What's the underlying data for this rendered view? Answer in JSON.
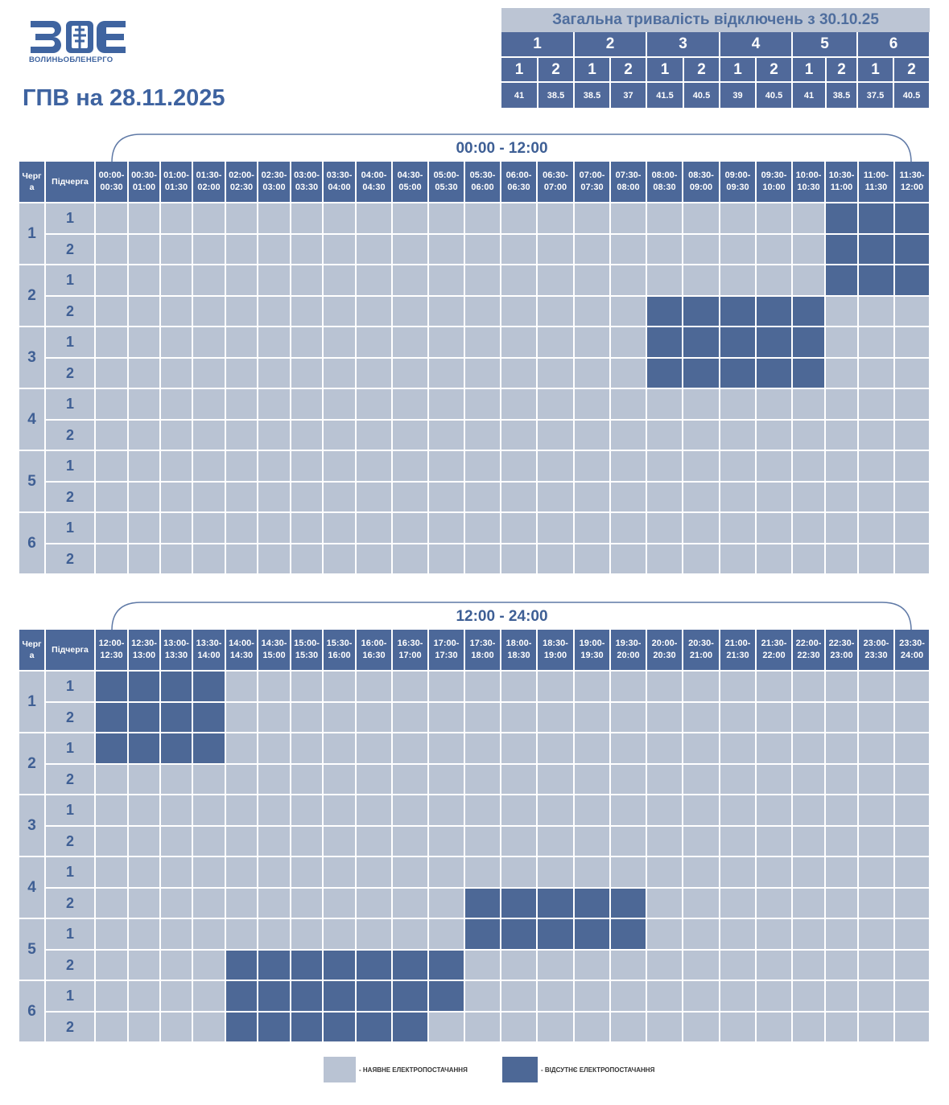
{
  "logo": {
    "text": "ВОЛИНЬОБЛЕНЕРГО",
    "mark_icon": "zoe-logo-icon",
    "color": "#3f64a0"
  },
  "title": "ГПВ на 28.11.2025",
  "summary": {
    "heading": "Загальна тривалість відключень з 30.10.25",
    "queues": [
      {
        "label": "1",
        "subs": [
          {
            "label": "1",
            "value": "41"
          },
          {
            "label": "2",
            "value": "38.5"
          }
        ]
      },
      {
        "label": "2",
        "subs": [
          {
            "label": "1",
            "value": "38.5"
          },
          {
            "label": "2",
            "value": "37"
          }
        ]
      },
      {
        "label": "3",
        "subs": [
          {
            "label": "1",
            "value": "41.5"
          },
          {
            "label": "2",
            "value": "40.5"
          }
        ]
      },
      {
        "label": "4",
        "subs": [
          {
            "label": "1",
            "value": "39"
          },
          {
            "label": "2",
            "value": "40.5"
          }
        ]
      },
      {
        "label": "5",
        "subs": [
          {
            "label": "1",
            "value": "41"
          },
          {
            "label": "2",
            "value": "38.5"
          }
        ]
      },
      {
        "label": "6",
        "subs": [
          {
            "label": "1",
            "value": "37.5"
          },
          {
            "label": "2",
            "value": "40.5"
          }
        ]
      }
    ]
  },
  "schedule": {
    "col_queue_label_top": "Черг",
    "col_queue_label_bottom": "а",
    "col_sub_label": "Підчерга",
    "queues": [
      "1",
      "2",
      "3",
      "4",
      "5",
      "6"
    ],
    "subqueues": [
      "1",
      "2"
    ],
    "colors": {
      "available": "#b9c3d3",
      "outage": "#4d6896",
      "header": "#4c6899"
    },
    "halves": [
      {
        "range_label": "00:00 - 12:00",
        "slots": [
          [
            "00:00-",
            "00:30"
          ],
          [
            "00:30-",
            "01:00"
          ],
          [
            "01:00-",
            "01:30"
          ],
          [
            "01:30-",
            "02:00"
          ],
          [
            "02:00-",
            "02:30"
          ],
          [
            "02:30-",
            "03:00"
          ],
          [
            "03:00-",
            "03:30"
          ],
          [
            "03:30-",
            "04:00"
          ],
          [
            "04:00-",
            "04:30"
          ],
          [
            "04:30-",
            "05:00"
          ],
          [
            "05:00-",
            "05:30"
          ],
          [
            "05:30-",
            "06:00"
          ],
          [
            "06:00-",
            "06:30"
          ],
          [
            "06:30-",
            "07:00"
          ],
          [
            "07:00-",
            "07:30"
          ],
          [
            "07:30-",
            "08:00"
          ],
          [
            "08:00-",
            "08:30"
          ],
          [
            "08:30-",
            "09:00"
          ],
          [
            "09:00-",
            "09:30"
          ],
          [
            "09:30-",
            "10:00"
          ],
          [
            "10:00-",
            "10:30"
          ],
          [
            "10:30-",
            "11:00"
          ],
          [
            "11:00-",
            "11:30"
          ],
          [
            "11:30-",
            "12:00"
          ]
        ],
        "rows": [
          [
            0,
            0,
            0,
            0,
            0,
            0,
            0,
            0,
            0,
            0,
            0,
            0,
            0,
            0,
            0,
            0,
            0,
            0,
            0,
            0,
            0,
            1,
            1,
            1
          ],
          [
            0,
            0,
            0,
            0,
            0,
            0,
            0,
            0,
            0,
            0,
            0,
            0,
            0,
            0,
            0,
            0,
            0,
            0,
            0,
            0,
            0,
            1,
            1,
            1
          ],
          [
            0,
            0,
            0,
            0,
            0,
            0,
            0,
            0,
            0,
            0,
            0,
            0,
            0,
            0,
            0,
            0,
            0,
            0,
            0,
            0,
            0,
            1,
            1,
            1
          ],
          [
            0,
            0,
            0,
            0,
            0,
            0,
            0,
            0,
            0,
            0,
            0,
            0,
            0,
            0,
            0,
            0,
            1,
            1,
            1,
            1,
            1,
            0,
            0,
            0
          ],
          [
            0,
            0,
            0,
            0,
            0,
            0,
            0,
            0,
            0,
            0,
            0,
            0,
            0,
            0,
            0,
            0,
            1,
            1,
            1,
            1,
            1,
            0,
            0,
            0
          ],
          [
            0,
            0,
            0,
            0,
            0,
            0,
            0,
            0,
            0,
            0,
            0,
            0,
            0,
            0,
            0,
            0,
            1,
            1,
            1,
            1,
            1,
            0,
            0,
            0
          ],
          [
            0,
            0,
            0,
            0,
            0,
            0,
            0,
            0,
            0,
            0,
            0,
            0,
            0,
            0,
            0,
            0,
            0,
            0,
            0,
            0,
            0,
            0,
            0,
            0
          ],
          [
            0,
            0,
            0,
            0,
            0,
            0,
            0,
            0,
            0,
            0,
            0,
            0,
            0,
            0,
            0,
            0,
            0,
            0,
            0,
            0,
            0,
            0,
            0,
            0
          ],
          [
            0,
            0,
            0,
            0,
            0,
            0,
            0,
            0,
            0,
            0,
            0,
            0,
            0,
            0,
            0,
            0,
            0,
            0,
            0,
            0,
            0,
            0,
            0,
            0
          ],
          [
            0,
            0,
            0,
            0,
            0,
            0,
            0,
            0,
            0,
            0,
            0,
            0,
            0,
            0,
            0,
            0,
            0,
            0,
            0,
            0,
            0,
            0,
            0,
            0
          ],
          [
            0,
            0,
            0,
            0,
            0,
            0,
            0,
            0,
            0,
            0,
            0,
            0,
            0,
            0,
            0,
            0,
            0,
            0,
            0,
            0,
            0,
            0,
            0,
            0
          ],
          [
            0,
            0,
            0,
            0,
            0,
            0,
            0,
            0,
            0,
            0,
            0,
            0,
            0,
            0,
            0,
            0,
            0,
            0,
            0,
            0,
            0,
            0,
            0,
            0
          ]
        ]
      },
      {
        "range_label": "12:00 - 24:00",
        "slots": [
          [
            "12:00-",
            "12:30"
          ],
          [
            "12:30-",
            "13:00"
          ],
          [
            "13:00-",
            "13:30"
          ],
          [
            "13:30-",
            "14:00"
          ],
          [
            "14:00-",
            "14:30"
          ],
          [
            "14:30-",
            "15:00"
          ],
          [
            "15:00-",
            "15:30"
          ],
          [
            "15:30-",
            "16:00"
          ],
          [
            "16:00-",
            "16:30"
          ],
          [
            "16:30-",
            "17:00"
          ],
          [
            "17:00-",
            "17:30"
          ],
          [
            "17:30-",
            "18:00"
          ],
          [
            "18:00-",
            "18:30"
          ],
          [
            "18:30-",
            "19:00"
          ],
          [
            "19:00-",
            "19:30"
          ],
          [
            "19:30-",
            "20:00"
          ],
          [
            "20:00-",
            "20:30"
          ],
          [
            "20:30-",
            "21:00"
          ],
          [
            "21:00-",
            "21:30"
          ],
          [
            "21:30-",
            "22:00"
          ],
          [
            "22:00-",
            "22:30"
          ],
          [
            "22:30-",
            "23:00"
          ],
          [
            "23:00-",
            "23:30"
          ],
          [
            "23:30-",
            "24:00"
          ]
        ],
        "rows": [
          [
            1,
            1,
            1,
            1,
            0,
            0,
            0,
            0,
            0,
            0,
            0,
            0,
            0,
            0,
            0,
            0,
            0,
            0,
            0,
            0,
            0,
            0,
            0,
            0
          ],
          [
            1,
            1,
            1,
            1,
            0,
            0,
            0,
            0,
            0,
            0,
            0,
            0,
            0,
            0,
            0,
            0,
            0,
            0,
            0,
            0,
            0,
            0,
            0,
            0
          ],
          [
            1,
            1,
            1,
            1,
            0,
            0,
            0,
            0,
            0,
            0,
            0,
            0,
            0,
            0,
            0,
            0,
            0,
            0,
            0,
            0,
            0,
            0,
            0,
            0
          ],
          [
            0,
            0,
            0,
            0,
            0,
            0,
            0,
            0,
            0,
            0,
            0,
            0,
            0,
            0,
            0,
            0,
            0,
            0,
            0,
            0,
            0,
            0,
            0,
            0
          ],
          [
            0,
            0,
            0,
            0,
            0,
            0,
            0,
            0,
            0,
            0,
            0,
            0,
            0,
            0,
            0,
            0,
            0,
            0,
            0,
            0,
            0,
            0,
            0,
            0
          ],
          [
            0,
            0,
            0,
            0,
            0,
            0,
            0,
            0,
            0,
            0,
            0,
            0,
            0,
            0,
            0,
            0,
            0,
            0,
            0,
            0,
            0,
            0,
            0,
            0
          ],
          [
            0,
            0,
            0,
            0,
            0,
            0,
            0,
            0,
            0,
            0,
            0,
            0,
            0,
            0,
            0,
            0,
            0,
            0,
            0,
            0,
            0,
            0,
            0,
            0
          ],
          [
            0,
            0,
            0,
            0,
            0,
            0,
            0,
            0,
            0,
            0,
            0,
            1,
            1,
            1,
            1,
            1,
            0,
            0,
            0,
            0,
            0,
            0,
            0,
            0
          ],
          [
            0,
            0,
            0,
            0,
            0,
            0,
            0,
            0,
            0,
            0,
            0,
            1,
            1,
            1,
            1,
            1,
            0,
            0,
            0,
            0,
            0,
            0,
            0,
            0
          ],
          [
            0,
            0,
            0,
            0,
            1,
            1,
            1,
            1,
            1,
            1,
            1,
            0,
            0,
            0,
            0,
            0,
            0,
            0,
            0,
            0,
            0,
            0,
            0,
            0
          ],
          [
            0,
            0,
            0,
            0,
            1,
            1,
            1,
            1,
            1,
            1,
            1,
            0,
            0,
            0,
            0,
            0,
            0,
            0,
            0,
            0,
            0,
            0,
            0,
            0
          ],
          [
            0,
            0,
            0,
            0,
            1,
            1,
            1,
            1,
            1,
            1,
            0,
            0,
            0,
            0,
            0,
            0,
            0,
            0,
            0,
            0,
            0,
            0,
            0,
            0
          ]
        ]
      }
    ]
  },
  "legend": {
    "available": "- НАЯВНЕ ЕЛЕКТРОПОСТАЧАННЯ",
    "outage": "- ВІДСУТНЄ ЕЛЕКТРОПОСТАЧАННЯ"
  }
}
